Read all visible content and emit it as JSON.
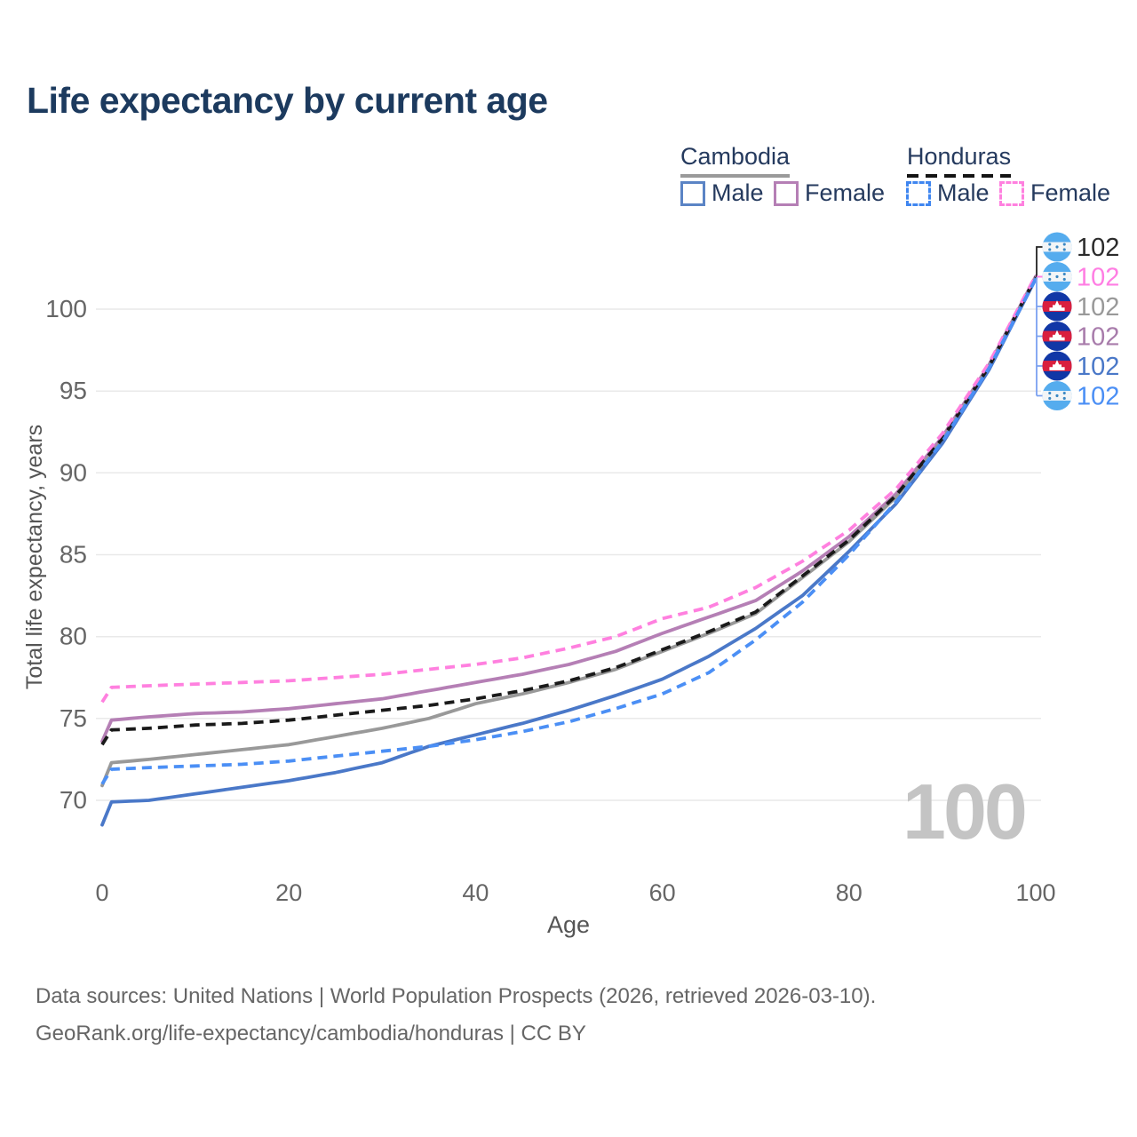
{
  "title": "Life expectancy by current age",
  "legend": {
    "groups": [
      {
        "country": "Cambodia",
        "line_style": "solid",
        "underline_color": "#9a9a9a",
        "items": [
          {
            "label": "Male",
            "color": "#5b84c5",
            "dash": false
          },
          {
            "label": "Female",
            "color": "#b57fb5",
            "dash": false
          }
        ]
      },
      {
        "country": "Honduras",
        "line_style": "dashed",
        "underline_color": "#141414",
        "items": [
          {
            "label": "Male",
            "color": "#3f86f0",
            "dash": true
          },
          {
            "label": "Female",
            "color": "#ff80df",
            "dash": true
          }
        ]
      }
    ]
  },
  "watermark": "100",
  "footer": {
    "line1": "Data sources: United Nations | World Population Prospects (2026, retrieved 2026-03-10).",
    "line2": "GeoRank.org/life-expectancy/cambodia/honduras | CC BY"
  },
  "chart_data": {
    "type": "line",
    "title": "Life expectancy by current age",
    "xlabel": "Age",
    "ylabel": "Total life expectancy, years",
    "x_ticks": [
      0,
      20,
      40,
      60,
      80,
      100
    ],
    "y_ticks": [
      70,
      75,
      80,
      85,
      90,
      95,
      100
    ],
    "xlim": [
      0,
      100
    ],
    "ylim": [
      67.5,
      102.5
    ],
    "grid": "horizontal",
    "legend_position": "top-right",
    "ages": [
      0,
      1,
      5,
      10,
      15,
      20,
      25,
      30,
      35,
      40,
      45,
      50,
      55,
      60,
      65,
      70,
      75,
      80,
      85,
      90,
      95,
      100
    ],
    "series": [
      {
        "name": "Cambodia Female",
        "country": "Cambodia",
        "sex": "Female",
        "color": "#b57fb5",
        "dash": "solid",
        "values": [
          73.6,
          74.9,
          75.1,
          75.3,
          75.4,
          75.6,
          75.9,
          76.2,
          76.7,
          77.2,
          77.7,
          78.3,
          79.1,
          80.2,
          81.2,
          82.2,
          84.0,
          86.1,
          88.7,
          92.2,
          96.6,
          102.0
        ]
      },
      {
        "name": "Cambodia All",
        "country": "Cambodia",
        "sex": "Both",
        "color": "#999999",
        "dash": "solid",
        "values": [
          70.9,
          72.3,
          72.5,
          72.8,
          73.1,
          73.4,
          73.9,
          74.4,
          75.0,
          75.9,
          76.5,
          77.2,
          78.0,
          79.1,
          80.2,
          81.4,
          83.6,
          85.8,
          88.5,
          92.0,
          96.5,
          101.9
        ]
      },
      {
        "name": "Cambodia Male",
        "country": "Cambodia",
        "sex": "Male",
        "color": "#4a78c8",
        "dash": "solid",
        "values": [
          68.5,
          69.9,
          70.0,
          70.4,
          70.8,
          71.2,
          71.7,
          72.3,
          73.3,
          74.0,
          74.7,
          75.5,
          76.4,
          77.4,
          78.8,
          80.5,
          82.5,
          85.2,
          88.1,
          91.8,
          96.3,
          101.85
        ]
      },
      {
        "name": "Honduras All",
        "country": "Honduras",
        "sex": "Both",
        "color": "#1a1a1a",
        "dash": "dashed",
        "values": [
          73.4,
          74.3,
          74.4,
          74.6,
          74.7,
          74.9,
          75.2,
          75.5,
          75.8,
          76.2,
          76.7,
          77.3,
          78.1,
          79.2,
          80.3,
          81.5,
          83.7,
          85.9,
          88.6,
          92.1,
          96.5,
          101.95
        ]
      },
      {
        "name": "Honduras Female",
        "country": "Honduras",
        "sex": "Female",
        "color": "#ff80df",
        "dash": "dashed",
        "values": [
          76.0,
          76.9,
          77.0,
          77.1,
          77.2,
          77.3,
          77.5,
          77.7,
          78.0,
          78.3,
          78.7,
          79.3,
          80.0,
          81.1,
          81.8,
          83.0,
          84.6,
          86.5,
          89.0,
          92.4,
          96.7,
          102.05
        ]
      },
      {
        "name": "Honduras Male",
        "country": "Honduras",
        "sex": "Male",
        "color": "#4b8ff5",
        "dash": "dashed",
        "values": [
          71.0,
          71.9,
          72.0,
          72.1,
          72.2,
          72.4,
          72.7,
          73.0,
          73.3,
          73.7,
          74.2,
          74.8,
          75.6,
          76.5,
          77.8,
          79.8,
          82.1,
          85.0,
          88.2,
          91.9,
          96.4,
          101.85
        ]
      }
    ],
    "end_labels": [
      {
        "value": "102",
        "flag": "honduras",
        "color": "#2b2b2b",
        "series": "Honduras All"
      },
      {
        "value": "102",
        "flag": "honduras",
        "color": "#ff7ee3",
        "series": "Honduras Female"
      },
      {
        "value": "102",
        "flag": "cambodia",
        "color": "#999999",
        "series": "Cambodia All"
      },
      {
        "value": "102",
        "flag": "cambodia",
        "color": "#a87cab",
        "series": "Cambodia Female"
      },
      {
        "value": "102",
        "flag": "cambodia",
        "color": "#4a78c8",
        "series": "Cambodia Male"
      },
      {
        "value": "102",
        "flag": "honduras",
        "color": "#4b8ff5",
        "series": "Honduras Male"
      }
    ]
  }
}
